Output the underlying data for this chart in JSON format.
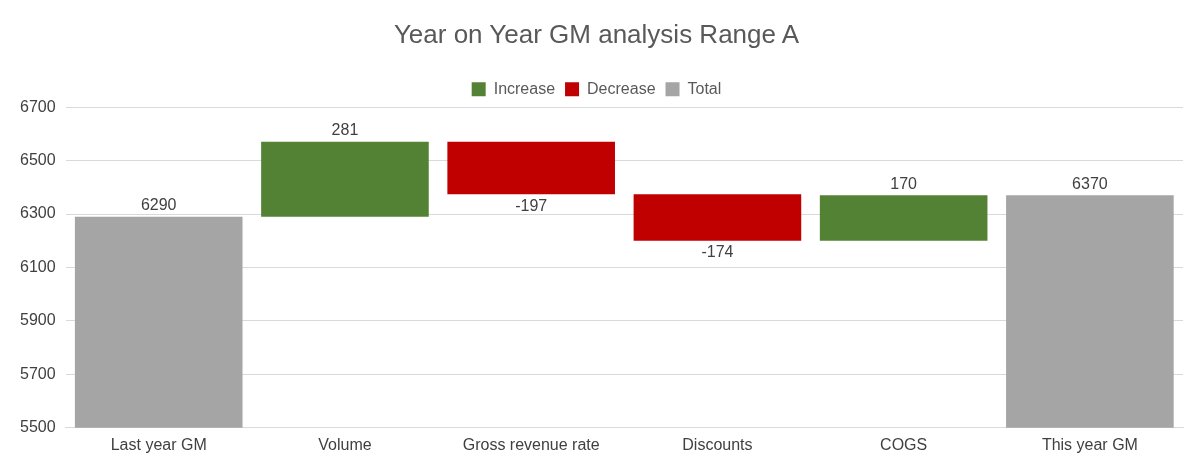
{
  "chart_data": {
    "type": "bar",
    "title": "Year on Year GM analysis Range A",
    "categories": [
      "Last year GM",
      "Volume",
      "Gross revenue rate",
      "Discounts",
      "COGS",
      "This year GM"
    ],
    "series": [
      {
        "name": "Increase",
        "color": "#548235",
        "values": [
          null,
          281,
          null,
          null,
          170,
          null
        ],
        "base": [
          null,
          6290,
          null,
          null,
          6200,
          null
        ]
      },
      {
        "name": "Decrease",
        "color": "#c00000",
        "values": [
          null,
          null,
          -197,
          -174,
          null,
          null
        ],
        "base": [
          null,
          null,
          6571,
          6374,
          null,
          null
        ]
      },
      {
        "name": "Total",
        "color": "#a5a5a5",
        "values": [
          6290,
          null,
          null,
          null,
          null,
          6370
        ]
      }
    ],
    "ylim": [
      5500,
      6700
    ],
    "yticks": [
      5500,
      5700,
      5900,
      6100,
      6300,
      6500,
      6700
    ],
    "grid": "y",
    "legend": "top",
    "data_labels": true
  }
}
